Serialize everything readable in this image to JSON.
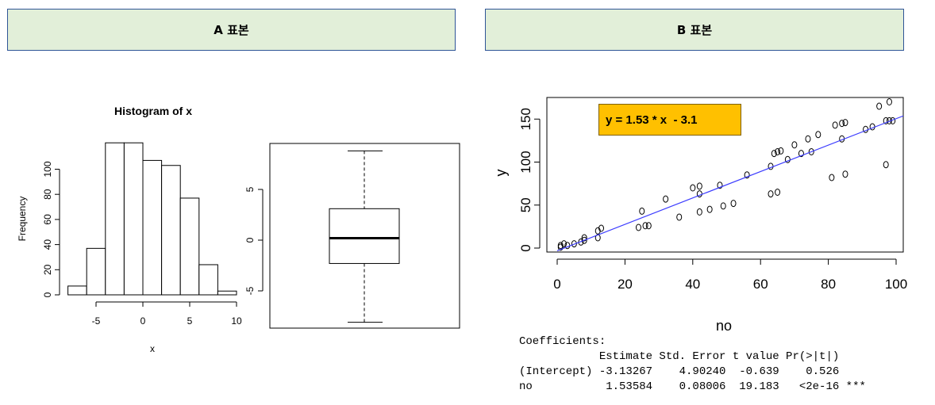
{
  "headers": {
    "a": "A 표본",
    "b": "B 표본"
  },
  "equation": "y = 1.53 * x  - 3.1",
  "coefficients_text": [
    "Coefficients:",
    "            Estimate Std. Error t value Pr(>|t|)",
    "(Intercept) -3.13267    4.90240  -0.639    0.526",
    "no           1.53584    0.08006  19.183   <2e-16 ***"
  ],
  "chart_data": [
    {
      "type": "bar",
      "title": "Histogram of x",
      "xlabel": "x",
      "ylabel": "Frequency",
      "bin_edges": [
        -8,
        -6,
        -4,
        -2,
        0,
        2,
        4,
        6,
        8,
        10
      ],
      "values": [
        7,
        37,
        121,
        121,
        107,
        103,
        77,
        24,
        3
      ],
      "xticks": [
        "-5",
        "0",
        "5",
        "10"
      ],
      "yticks": [
        "0",
        "20",
        "40",
        "60",
        "80",
        "100"
      ],
      "ylim": [
        0,
        121
      ],
      "color": "#ffffff"
    },
    {
      "type": "box",
      "min": -8.1,
      "q1": -2.3,
      "median": 0.2,
      "q3": 3.1,
      "max": 8.8,
      "yticks": [
        "-5",
        "0",
        "5"
      ],
      "ylim": [
        -8.5,
        9
      ]
    },
    {
      "type": "scatter",
      "xlabel": "no",
      "ylabel": "y",
      "xlim": [
        -2,
        102
      ],
      "ylim": [
        -3,
        175
      ],
      "xticks": [
        "0",
        "20",
        "40",
        "60",
        "80",
        "100"
      ],
      "yticks": [
        "0",
        "50",
        "100",
        "150"
      ],
      "points": [
        [
          1,
          1
        ],
        [
          1,
          3
        ],
        [
          2,
          5
        ],
        [
          3,
          3
        ],
        [
          5,
          5
        ],
        [
          7,
          7
        ],
        [
          8,
          9
        ],
        [
          8,
          12
        ],
        [
          12,
          12
        ],
        [
          12,
          20
        ],
        [
          13,
          23
        ],
        [
          24,
          24
        ],
        [
          25,
          43
        ],
        [
          26,
          26
        ],
        [
          27,
          26
        ],
        [
          32,
          57
        ],
        [
          36,
          36
        ],
        [
          40,
          70
        ],
        [
          42,
          72
        ],
        [
          42,
          42
        ],
        [
          42,
          63
        ],
        [
          45,
          45
        ],
        [
          48,
          73
        ],
        [
          49,
          49
        ],
        [
          52,
          52
        ],
        [
          56,
          85
        ],
        [
          63,
          63
        ],
        [
          63,
          95
        ],
        [
          64,
          110
        ],
        [
          65,
          65
        ],
        [
          65,
          112
        ],
        [
          66,
          113
        ],
        [
          68,
          103
        ],
        [
          70,
          120
        ],
        [
          72,
          110
        ],
        [
          74,
          127
        ],
        [
          75,
          112
        ],
        [
          77,
          132
        ],
        [
          81,
          82
        ],
        [
          82,
          143
        ],
        [
          84,
          127
        ],
        [
          84,
          145
        ],
        [
          85,
          86
        ],
        [
          85,
          146
        ],
        [
          91,
          138
        ],
        [
          93,
          141
        ],
        [
          95,
          165
        ],
        [
          97,
          97
        ],
        [
          97,
          148
        ],
        [
          98,
          170
        ],
        [
          98,
          148
        ],
        [
          99,
          148
        ]
      ],
      "fit": {
        "intercept": -3.13267,
        "slope": 1.53584
      },
      "line_color": "#3b3bff"
    }
  ]
}
